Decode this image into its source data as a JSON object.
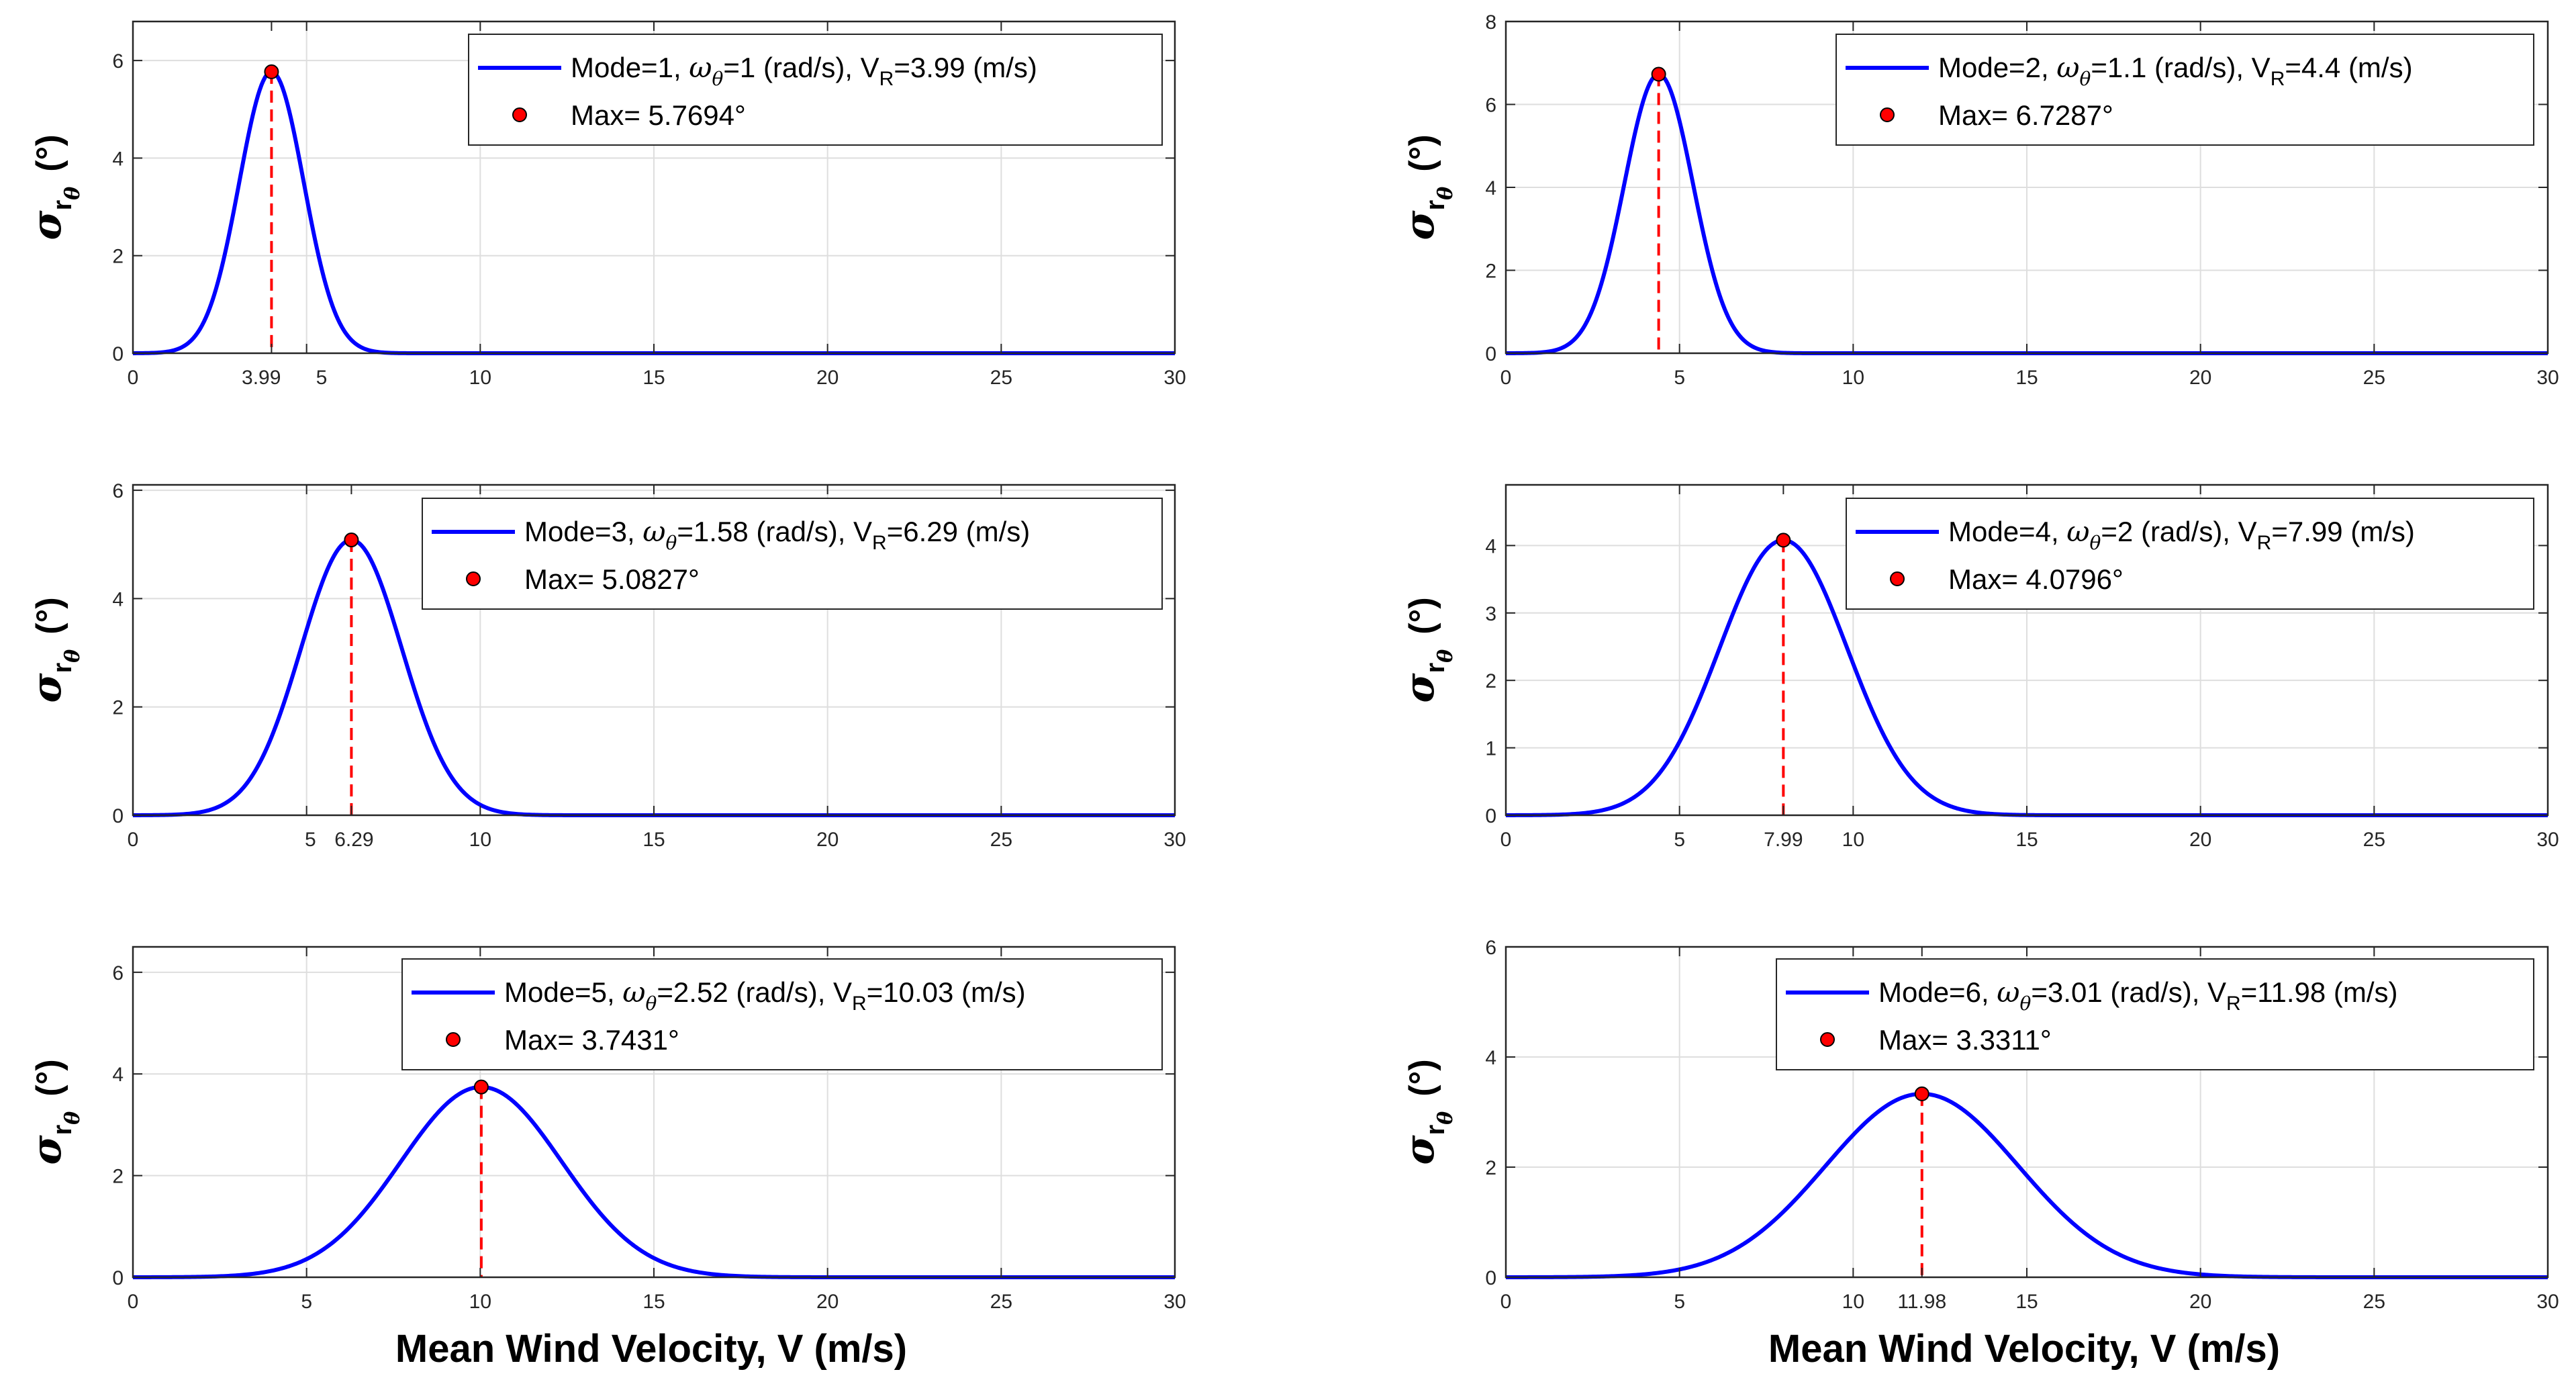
{
  "figure": {
    "xlabel": "Mean Wind Velocity, V (m/s)",
    "ylabel": {
      "symbol": "σ",
      "sub": "r",
      "subsub": "θ",
      "unit": "(°)"
    }
  },
  "colors": {
    "curve": "#0000ff",
    "marker": "#ff0000",
    "dashed": "#ff0000",
    "grid": "#dedede",
    "axis": "#262626"
  },
  "chart_data": [
    {
      "type": "line",
      "mode": 1,
      "omega": "1",
      "vr_text": "3.99",
      "peak_x": 3.99,
      "peak_y": 5.7694,
      "sigma": 0.93,
      "xlim": [
        0,
        30
      ],
      "ylim": [
        0,
        6.8
      ],
      "xticks": [
        "0",
        "3.99",
        "5",
        "10",
        "15",
        "20",
        "25",
        "30"
      ],
      "yticks": [
        "0",
        "2",
        "4",
        "6"
      ],
      "legend_curve": {
        "pre": "Mode=1, ",
        "omega_sym": "ω",
        "omega_sub": "θ",
        "mid": "=1 (rad/s), V",
        "vr_sub": "R",
        "post": "=3.99 (m/s)"
      },
      "legend_max": "Max= 5.7694°"
    },
    {
      "type": "line",
      "mode": 2,
      "omega": "1.1",
      "vr_text": "4.4",
      "peak_x": 4.4,
      "peak_y": 6.7287,
      "sigma": 0.99,
      "xlim": [
        0,
        30
      ],
      "ylim": [
        0,
        8
      ],
      "xticks": [
        "0",
        "5",
        "10",
        "15",
        "20",
        "25",
        "30"
      ],
      "yticks": [
        "0",
        "2",
        "4",
        "6",
        "8"
      ],
      "legend_curve": {
        "pre": "Mode=2, ",
        "omega_sym": "ω",
        "omega_sub": "θ",
        "mid": "=1.1 (rad/s), V",
        "vr_sub": "R",
        "post": "=4.4 (m/s)"
      },
      "legend_max": "Max= 6.7287°"
    },
    {
      "type": "line",
      "mode": 3,
      "omega": "1.58",
      "vr_text": "6.29",
      "peak_x": 6.29,
      "peak_y": 5.0827,
      "sigma": 1.45,
      "xlim": [
        0,
        30
      ],
      "ylim": [
        0,
        6.1
      ],
      "xticks": [
        "0",
        "5",
        "6.29",
        "10",
        "15",
        "20",
        "25",
        "30"
      ],
      "yticks": [
        "0",
        "2",
        "4",
        "6"
      ],
      "legend_curve": {
        "pre": "Mode=3, ",
        "omega_sym": "ω",
        "omega_sub": "θ",
        "mid": "=1.58 (rad/s), V",
        "vr_sub": "R",
        "post": "=6.29 (m/s)"
      },
      "legend_max": "Max= 5.0827°"
    },
    {
      "type": "line",
      "mode": 4,
      "omega": "2",
      "vr_text": "7.99",
      "peak_x": 7.99,
      "peak_y": 4.0796,
      "sigma": 1.84,
      "xlim": [
        0,
        30
      ],
      "ylim": [
        0,
        4.9
      ],
      "xticks": [
        "0",
        "5",
        "7.99",
        "10",
        "15",
        "20",
        "25",
        "30"
      ],
      "yticks": [
        "0",
        "1",
        "2",
        "3",
        "4"
      ],
      "legend_curve": {
        "pre": "Mode=4, ",
        "omega_sym": "ω",
        "omega_sub": "θ",
        "mid": "=2 (rad/s), V",
        "vr_sub": "R",
        "post": "=7.99 (m/s)"
      },
      "legend_max": "Max= 4.0796°"
    },
    {
      "type": "line",
      "mode": 5,
      "omega": "2.52",
      "vr_text": "10.03",
      "peak_x": 10.03,
      "peak_y": 3.7431,
      "sigma": 2.32,
      "xlim": [
        0,
        30
      ],
      "ylim": [
        0,
        6.5
      ],
      "xticks": [
        "0",
        "5",
        "10",
        "15",
        "20",
        "25",
        "30"
      ],
      "yticks": [
        "0",
        "2",
        "4",
        "6"
      ],
      "legend_curve": {
        "pre": "Mode=5, ",
        "omega_sym": "ω",
        "omega_sub": "θ",
        "mid": "=2.52 (rad/s), V",
        "vr_sub": "R",
        "post": "=10.03 (m/s)"
      },
      "legend_max": "Max= 3.7431°"
    },
    {
      "type": "line",
      "mode": 6,
      "omega": "3.01",
      "vr_text": "11.98",
      "peak_x": 11.98,
      "peak_y": 3.3311,
      "sigma": 2.78,
      "xlim": [
        0,
        30
      ],
      "ylim": [
        0,
        6
      ],
      "xticks": [
        "0",
        "5",
        "10",
        "11.98",
        "15",
        "20",
        "25",
        "30"
      ],
      "yticks": [
        "0",
        "2",
        "4",
        "6"
      ],
      "legend_curve": {
        "pre": "Mode=6, ",
        "omega_sym": "ω",
        "omega_sub": "θ",
        "mid": "=3.01 (rad/s), V",
        "vr_sub": "R",
        "post": "=11.98 (m/s)"
      },
      "legend_max": "Max= 3.3311°"
    }
  ]
}
